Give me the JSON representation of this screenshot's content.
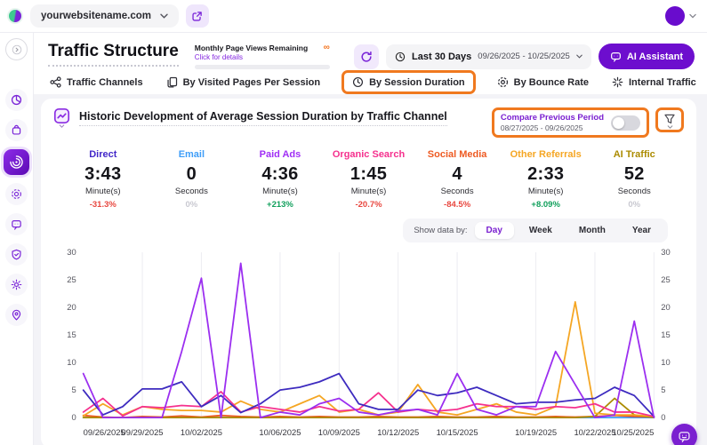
{
  "topbar": {
    "website": "yourwebsitename.com"
  },
  "header": {
    "title": "Traffic Structure",
    "quota_title": "Monthly Page Views Remaining",
    "quota_infinity": "∞",
    "quota_link": "Click for details",
    "date_range_label": "Last 30 Days",
    "date_range": "09/26/2025 - 10/25/2025",
    "ai_assistant_label": "AI Assistant"
  },
  "tabs": [
    {
      "label": "Traffic Channels"
    },
    {
      "label": "By Visited Pages Per Session"
    },
    {
      "label": "By Session Duration",
      "highlighted": true
    },
    {
      "label": "By Bounce Rate"
    },
    {
      "label": "Internal Traffic"
    }
  ],
  "card": {
    "title": "Historic Development of Average Session Duration by Traffic Channel",
    "compare": {
      "label": "Compare Previous Period",
      "range": "08/27/2025 - 09/26/2025",
      "toggle_state": "off"
    },
    "show_data_by": {
      "label": "Show data by:",
      "options": [
        "Day",
        "Week",
        "Month",
        "Year"
      ],
      "selected": "Day"
    }
  },
  "annotation_color": "#f0791f",
  "metrics": [
    {
      "channel": "Direct",
      "value": "3:43",
      "unit": "Minute(s)",
      "change": "-31.3%",
      "color": "#4328c9",
      "change_color": "#e8473f"
    },
    {
      "channel": "Email",
      "value": "0",
      "unit": "Seconds",
      "change": "0%",
      "color": "#3f9ef8",
      "change_color": "#c9c9d1"
    },
    {
      "channel": "Paid Ads",
      "value": "4:36",
      "unit": "Minute(s)",
      "change": "+213%",
      "color": "#a02ef5",
      "change_color": "#11a05c"
    },
    {
      "channel": "Organic Search",
      "value": "1:45",
      "unit": "Minute(s)",
      "change": "-20.7%",
      "color": "#f5318e",
      "change_color": "#e8473f"
    },
    {
      "channel": "Social Media",
      "value": "4",
      "unit": "Seconds",
      "change": "-84.5%",
      "color": "#ee5a22",
      "change_color": "#e8473f"
    },
    {
      "channel": "Other Referrals",
      "value": "2:33",
      "unit": "Minute(s)",
      "change": "+8.09%",
      "color": "#f5a623",
      "change_color": "#11a05c"
    },
    {
      "channel": "AI Traffic",
      "value": "52",
      "unit": "Seconds",
      "change": "0%",
      "color": "#ab8b00",
      "change_color": "#c9c9d1"
    }
  ],
  "chart_data": {
    "type": "line",
    "title": "Historic Development of Average Session Duration by Traffic Channel",
    "xlabel": "",
    "ylabel": "",
    "ylim": [
      0,
      30
    ],
    "yticks": [
      0,
      5,
      10,
      15,
      20,
      25,
      30
    ],
    "grid": "vertical-only",
    "legend": "none (colors keyed to metric headers)",
    "n_points": 30,
    "x_labels": [
      "09/26/2025",
      "09/29/2025",
      "10/02/2025",
      "10/06/2025",
      "10/09/2025",
      "10/12/2025",
      "10/15/2025",
      "10/19/2025",
      "10/22/2025",
      "10/25/2025"
    ],
    "x_label_indices": [
      0,
      3,
      6,
      10,
      13,
      16,
      19,
      23,
      26,
      29
    ],
    "series": [
      {
        "name": "Email",
        "color": "#3f9ef8",
        "values": [
          0,
          0,
          0,
          0,
          0,
          0,
          0,
          0,
          0,
          0,
          0,
          0,
          0,
          0,
          0,
          0,
          0,
          0,
          0,
          0,
          0,
          0,
          0,
          0,
          0,
          0,
          0,
          0,
          0,
          0
        ]
      },
      {
        "name": "Social Media",
        "color": "#ee5a22",
        "values": [
          0.4,
          0.1,
          0,
          0.2,
          0.1,
          0.3,
          0.1,
          0.4,
          0.2,
          0.1,
          0.2,
          0.1,
          0.2,
          0.1,
          0.1,
          0.2,
          0.1,
          0.1,
          0.2,
          0.1,
          0.1,
          0.2,
          0.1,
          0.1,
          0.2,
          0.1,
          0.2,
          0.4,
          0.2,
          0.1
        ]
      },
      {
        "name": "AI Traffic",
        "color": "#ab8b00",
        "values": [
          0,
          0,
          0,
          0,
          0,
          0,
          0,
          0,
          0,
          0,
          0,
          0,
          0,
          0,
          0,
          0,
          0,
          0,
          0,
          0,
          0,
          0,
          0,
          0,
          0,
          0,
          0.2,
          3.5,
          0.5,
          0
        ]
      },
      {
        "name": "Other Referrals",
        "color": "#f5a623",
        "values": [
          0.3,
          2.5,
          0.5,
          2,
          1.5,
          1.3,
          1.3,
          1,
          3,
          1.5,
          1,
          2.5,
          4,
          1,
          1.5,
          0.5,
          1,
          6,
          1,
          0.5,
          1.5,
          2.5,
          1,
          0.5,
          2,
          21,
          0.8,
          0.5,
          0.5,
          0.2
        ]
      },
      {
        "name": "Organic Search",
        "color": "#f5318e",
        "values": [
          1,
          3.5,
          0.3,
          2,
          1.8,
          2.2,
          2,
          4.7,
          1,
          2,
          1.5,
          1,
          2,
          1.2,
          1.5,
          4.5,
          1,
          1.5,
          1.2,
          1.5,
          2.5,
          2,
          2,
          1.5,
          2,
          1.8,
          2.5,
          1,
          1,
          0.2
        ]
      },
      {
        "name": "Direct",
        "color": "#3d2bbf",
        "values": [
          5,
          0.5,
          2,
          5.2,
          5.2,
          6.5,
          2,
          4,
          0.9,
          2.5,
          5,
          5.5,
          6.5,
          8,
          2.5,
          1.5,
          1.5,
          5,
          4,
          4.5,
          5.5,
          4,
          2.5,
          2.8,
          2.8,
          3.2,
          3.5,
          5.5,
          4,
          0.2
        ]
      },
      {
        "name": "Paid Ads",
        "color": "#9b2ef0",
        "values": [
          8,
          0,
          0,
          0,
          0,
          12,
          25.3,
          0,
          28,
          0,
          1,
          0.5,
          2.5,
          3.5,
          1,
          0.5,
          1.2,
          1.5,
          0.5,
          8,
          1.5,
          0.5,
          2,
          2,
          12,
          6,
          0,
          0.5,
          17.5,
          0
        ]
      }
    ]
  }
}
